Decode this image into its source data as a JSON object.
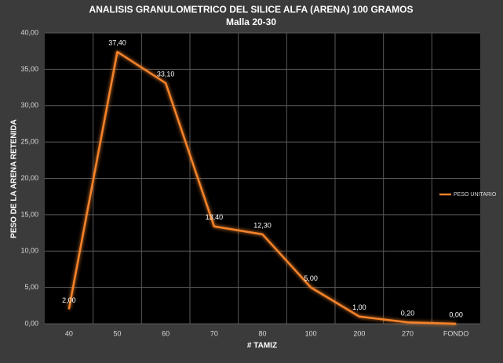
{
  "chart_data": {
    "type": "line",
    "title": "ANALISIS GRANULOMETRICO DEL SILICE ALFA (ARENA) 100 GRAMOS",
    "subtitle": "Malla 20-30",
    "x_label": "# TAMIZ",
    "y_label": "PESO DE LA ARENA RETENIDA",
    "categories": [
      "40",
      "50",
      "60",
      "70",
      "80",
      "100",
      "200",
      "270",
      "FONDO"
    ],
    "series": [
      {
        "name": "PESO UNITARIO",
        "color": "#f5832a",
        "values": [
          2,
          37.4,
          33.1,
          13.4,
          12.3,
          5,
          1,
          0.2,
          0
        ],
        "value_labels": [
          "2,00",
          "37,40",
          "33,10",
          "13,40",
          "12,30",
          "5,00",
          "1,00",
          "0,20",
          "0,00"
        ]
      }
    ],
    "ylim": [
      0,
      40
    ],
    "yticks": [
      {
        "value": 0,
        "label": "0,00"
      },
      {
        "value": 5,
        "label": "5,00"
      },
      {
        "value": 10,
        "label": "10,00"
      },
      {
        "value": 15,
        "label": "15,00"
      },
      {
        "value": 20,
        "label": "20,00"
      },
      {
        "value": 25,
        "label": "25,00"
      },
      {
        "value": 30,
        "label": "30,00"
      },
      {
        "value": 35,
        "label": "35,00"
      },
      {
        "value": 40,
        "label": "40,00"
      }
    ],
    "grid": true,
    "legend": "right"
  }
}
